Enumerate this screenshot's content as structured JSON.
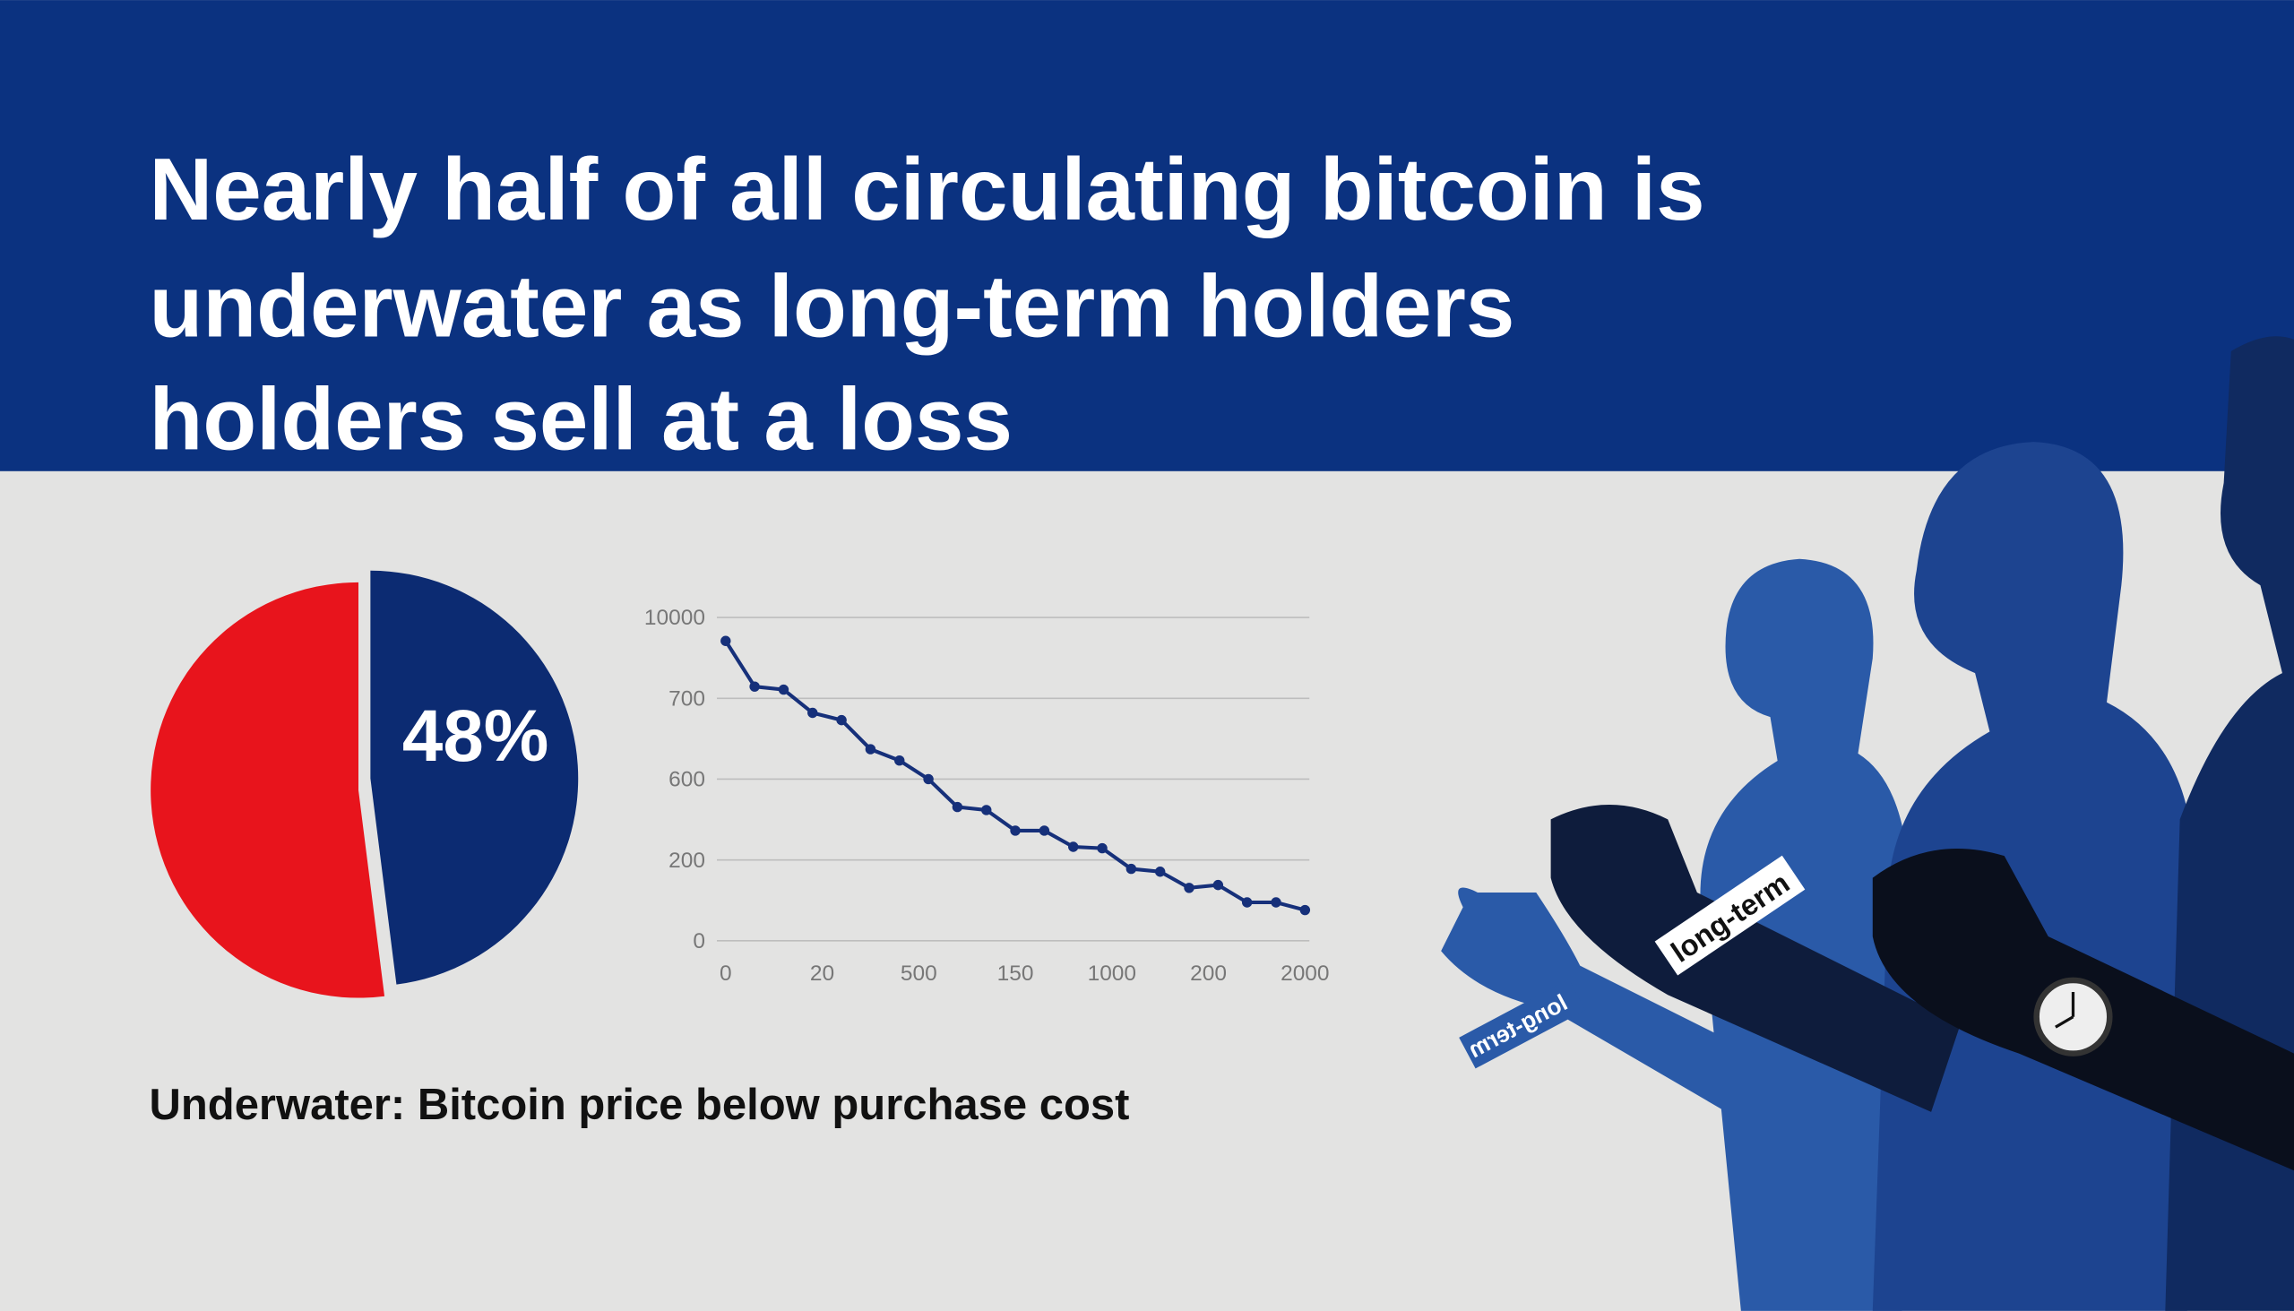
{
  "header": {
    "title_lines": [
      "Nearly half of all circulating bitcoin is",
      "underwater as long-term holders",
      "holders sell at a loss"
    ]
  },
  "chart_data": [
    {
      "type": "pie",
      "values": [
        48,
        52
      ],
      "value_labels": [
        "48%",
        null
      ],
      "colors": [
        "#0c2b72",
        "#e8141c"
      ]
    },
    {
      "type": "line",
      "series": [
        {
          "color": "#16307a",
          "values": [
            7300,
            2050,
            1700,
            682,
            673,
            637,
            623,
            600,
            462,
            447,
            345,
            345,
            265,
            258,
            178,
            171,
            131,
            138,
            95,
            95,
            76
          ]
        }
      ],
      "ylim": [
        0,
        10000
      ],
      "yticks": [
        0,
        200,
        600,
        700,
        10000
      ],
      "xtick_labels": [
        "0",
        "20",
        "500",
        "150",
        "1000",
        "200",
        "2000"
      ],
      "grid": true
    }
  ],
  "caption": "Underwater: Bitcoin price below purchase cost",
  "figures": {
    "wristbands": [
      "long-term",
      "long-term"
    ]
  }
}
